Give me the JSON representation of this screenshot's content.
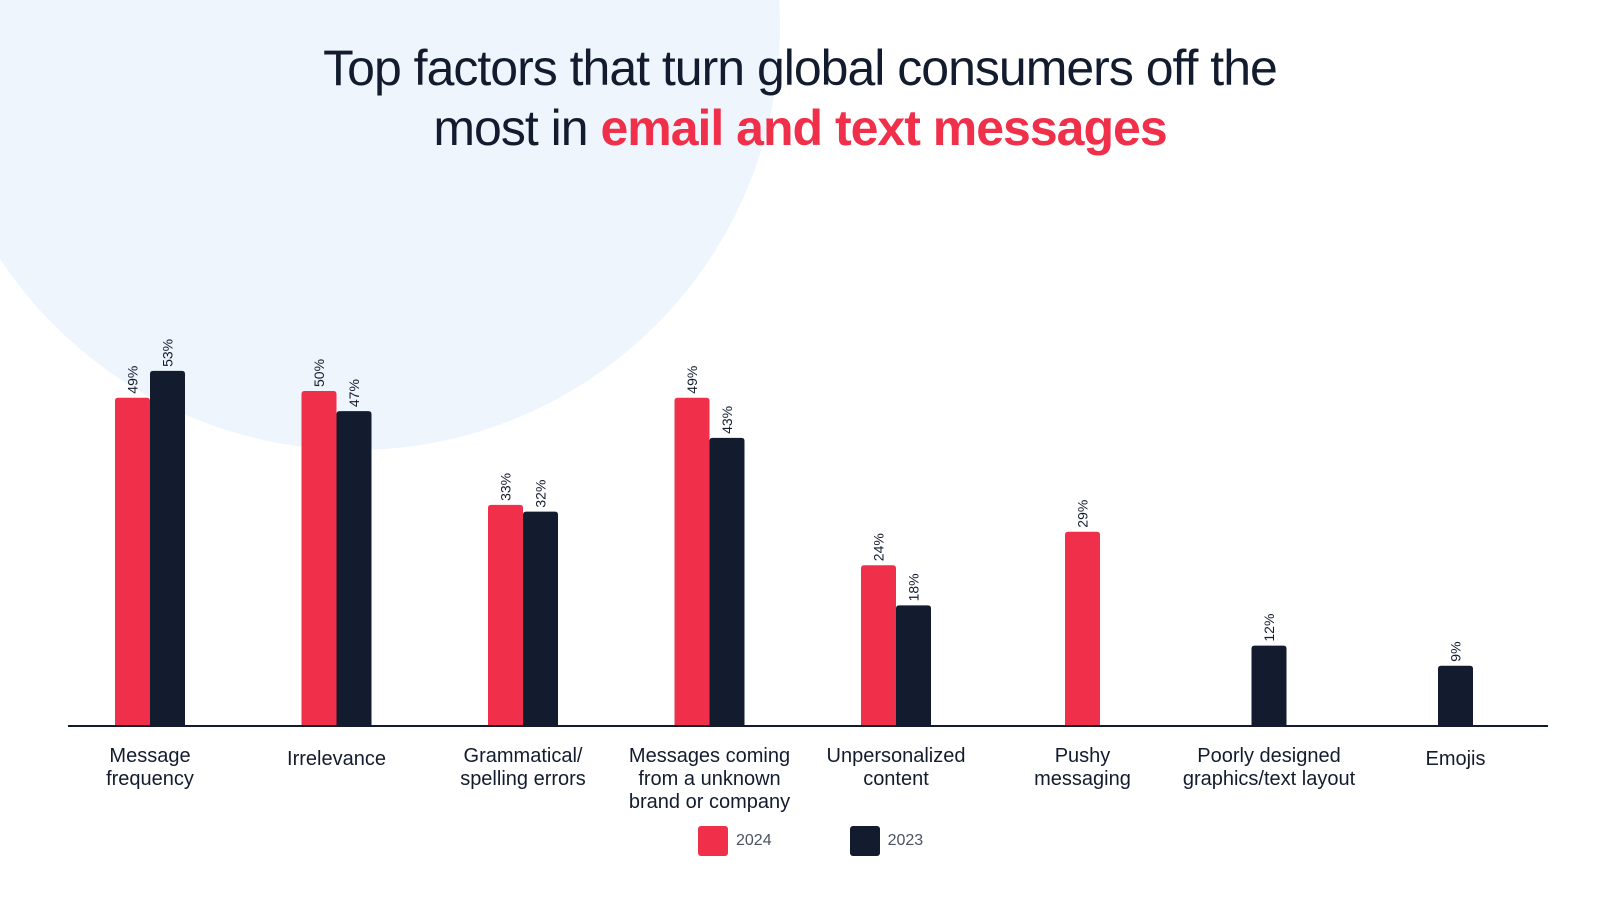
{
  "title": {
    "line1": "Top factors that turn global consumers off the",
    "line2_prefix": "most in ",
    "line2_highlight": "email and text messages"
  },
  "colors": {
    "series_2024": "#f0304a",
    "series_2023": "#131c2e",
    "highlight": "#f0304a",
    "background_circle": "#eef5fd"
  },
  "chart_data": {
    "type": "bar",
    "categories": [
      [
        "Message",
        "frequency"
      ],
      [
        "Irrelevance"
      ],
      [
        "Grammatical/",
        "spelling errors"
      ],
      [
        "Messages coming",
        "from a unknown",
        "brand or company"
      ],
      [
        "Unpersonalized",
        "content"
      ],
      [
        "Pushy",
        "messaging"
      ],
      [
        "Poorly designed",
        "graphics/text layout"
      ],
      [
        "Emojis"
      ]
    ],
    "series": [
      {
        "name": "2024",
        "values": [
          49,
          50,
          33,
          49,
          24,
          29,
          null,
          null
        ]
      },
      {
        "name": "2023",
        "values": [
          53,
          47,
          32,
          43,
          18,
          null,
          12,
          9
        ]
      }
    ],
    "value_suffix": "%",
    "ylim": [
      0,
      60
    ],
    "legend_position": "bottom"
  }
}
